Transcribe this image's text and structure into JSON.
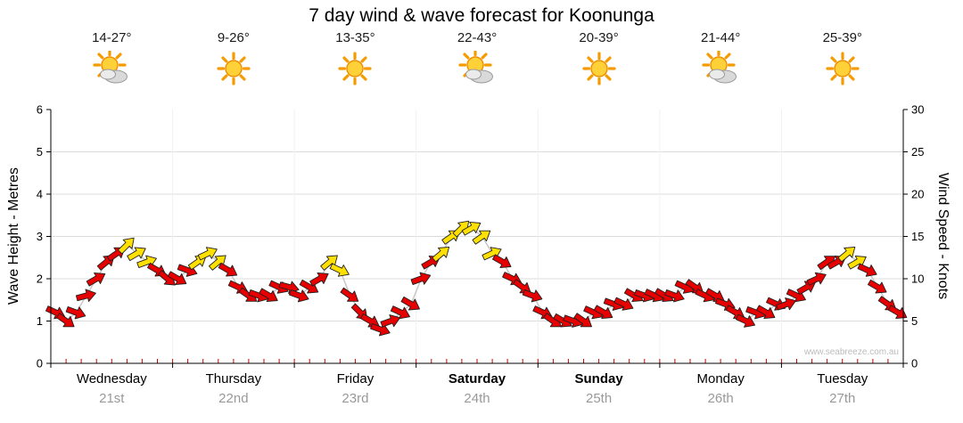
{
  "watermark": "www.seabreeze.com.au",
  "chart_data": {
    "type": "line",
    "title": "7 day wind & wave forecast for Koonunga",
    "y_left": {
      "label": "Wave Height - Metres",
      "min": 0,
      "max": 6,
      "ticks": [
        0,
        1,
        2,
        3,
        4,
        5,
        6
      ]
    },
    "y_right": {
      "label": "Wind Speed - Knots",
      "min": 0,
      "max": 30,
      "ticks": [
        0,
        5,
        10,
        15,
        20,
        25,
        30
      ]
    },
    "samples_per_day": 12,
    "series_name": "Wind speed (knots) with wind-direction arrows",
    "arrow_colors": {
      "r": "#e60000",
      "y": "#ffe000"
    },
    "days": [
      {
        "name": "Wednesday",
        "date": "21st",
        "temp": "14-27°",
        "icon": "partly-cloudy",
        "bold": false,
        "speeds": [
          6,
          5,
          6,
          8,
          10,
          12,
          13,
          14,
          13,
          12,
          11,
          10
        ],
        "dirs": [
          25,
          35,
          20,
          -15,
          -30,
          -40,
          -35,
          -45,
          -30,
          -20,
          30,
          40
        ],
        "colors": [
          "r",
          "r",
          "r",
          "r",
          "r",
          "r",
          "r",
          "y",
          "y",
          "y",
          "r",
          "r"
        ]
      },
      {
        "name": "Thursday",
        "date": "22nd",
        "temp": "9-26°",
        "icon": "sunny",
        "bold": false,
        "speeds": [
          10,
          11,
          12,
          13,
          12,
          11,
          9,
          8,
          8,
          8,
          9,
          9
        ],
        "dirs": [
          30,
          20,
          -35,
          -25,
          -40,
          30,
          25,
          35,
          20,
          30,
          25,
          15
        ],
        "colors": [
          "r",
          "r",
          "y",
          "y",
          "y",
          "r",
          "r",
          "r",
          "r",
          "r",
          "r",
          "r"
        ]
      },
      {
        "name": "Friday",
        "date": "23rd",
        "temp": "13-35°",
        "icon": "sunny",
        "bold": false,
        "speeds": [
          8,
          9,
          10,
          12,
          11,
          8,
          6,
          5,
          4,
          5,
          6,
          7
        ],
        "dirs": [
          20,
          30,
          -30,
          -40,
          25,
          35,
          45,
          30,
          20,
          -20,
          25,
          30
        ],
        "colors": [
          "r",
          "r",
          "r",
          "y",
          "y",
          "r",
          "r",
          "r",
          "r",
          "r",
          "r",
          "r"
        ]
      },
      {
        "name": "Saturday",
        "date": "24th",
        "temp": "22-43°",
        "icon": "partly-cloudy",
        "bold": true,
        "speeds": [
          10,
          12,
          13,
          15,
          16,
          16,
          15,
          13,
          12,
          10,
          9,
          8
        ],
        "dirs": [
          -20,
          -30,
          -40,
          -35,
          -45,
          -30,
          -35,
          -25,
          30,
          25,
          35,
          20
        ],
        "colors": [
          "r",
          "r",
          "y",
          "y",
          "y",
          "y",
          "y",
          "y",
          "r",
          "r",
          "r",
          "r"
        ]
      },
      {
        "name": "Sunday",
        "date": "25th",
        "temp": "20-39°",
        "icon": "sunny",
        "bold": true,
        "speeds": [
          6,
          5,
          5,
          5,
          5,
          6,
          6,
          7,
          7,
          8,
          8,
          8
        ],
        "dirs": [
          25,
          35,
          30,
          20,
          35,
          25,
          30,
          20,
          25,
          30,
          20,
          25
        ],
        "colors": [
          "r",
          "r",
          "r",
          "r",
          "r",
          "r",
          "r",
          "r",
          "r",
          "r",
          "r",
          "r"
        ]
      },
      {
        "name": "Monday",
        "date": "26th",
        "temp": "21-44°",
        "icon": "partly-cloudy",
        "bold": false,
        "speeds": [
          8,
          8,
          9,
          9,
          8,
          8,
          7,
          6,
          5,
          6,
          6,
          7
        ],
        "dirs": [
          30,
          20,
          25,
          35,
          25,
          30,
          20,
          30,
          25,
          20,
          30,
          25
        ],
        "colors": [
          "r",
          "r",
          "r",
          "r",
          "r",
          "r",
          "r",
          "r",
          "r",
          "r",
          "r",
          "r"
        ]
      },
      {
        "name": "Tuesday",
        "date": "27th",
        "temp": "25-39°",
        "icon": "sunny",
        "bold": false,
        "speeds": [
          7,
          8,
          9,
          10,
          12,
          12,
          13,
          12,
          11,
          9,
          7,
          6
        ],
        "dirs": [
          -20,
          25,
          -30,
          -25,
          -35,
          -30,
          -40,
          -30,
          25,
          30,
          35,
          30
        ],
        "colors": [
          "r",
          "r",
          "r",
          "r",
          "r",
          "r",
          "y",
          "y",
          "r",
          "r",
          "r",
          "r"
        ]
      }
    ]
  }
}
